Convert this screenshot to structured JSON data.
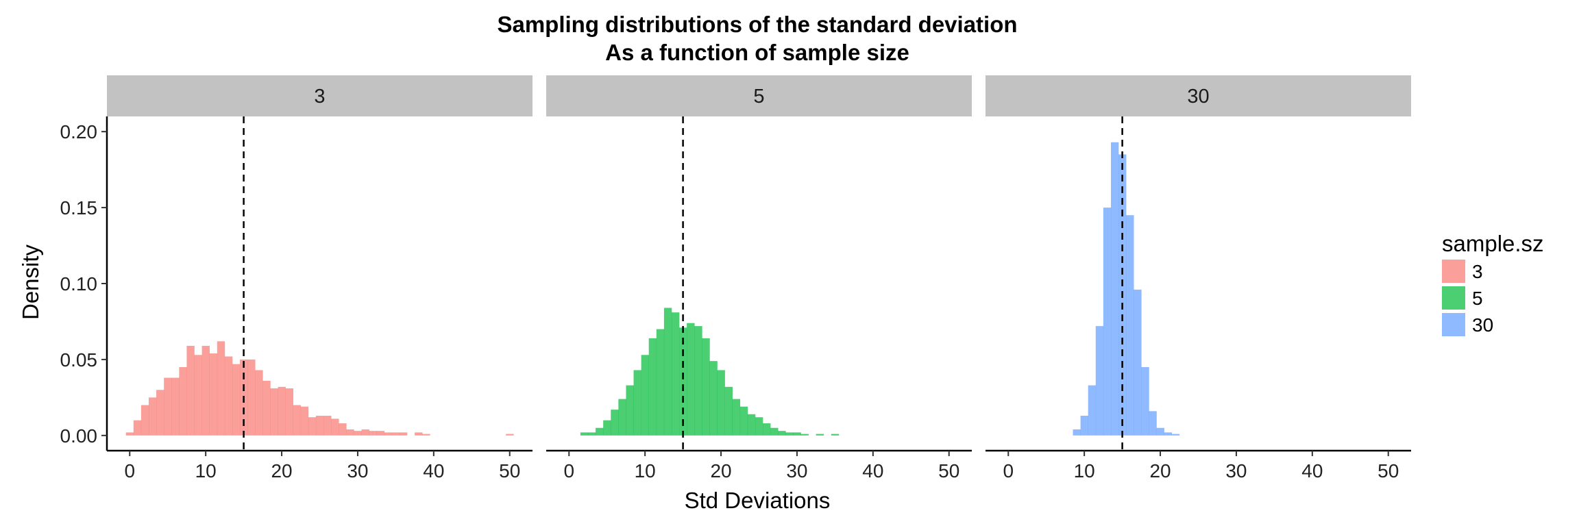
{
  "chart_data": {
    "type": "histogram",
    "title": "Sampling distributions of the standard deviation",
    "subtitle": "As a function of sample size",
    "xlabel": "Std Deviations",
    "ylabel": "Density",
    "xlim": [
      -3,
      53
    ],
    "ylim": [
      -0.01,
      0.21
    ],
    "xticks": [
      0,
      10,
      20,
      30,
      40,
      50
    ],
    "yticks": [
      0.0,
      0.05,
      0.1,
      0.15,
      0.2
    ],
    "ytick_labels": [
      "0.00",
      "0.05",
      "0.10",
      "0.15",
      "0.20"
    ],
    "bin_width": 1,
    "reference_line_x": 15,
    "grid": false,
    "legend": {
      "title": "sample.sz",
      "position": "right",
      "entries": [
        {
          "label": "3",
          "color": "#F8766D"
        },
        {
          "label": "5",
          "color": "#00BA38"
        },
        {
          "label": "30",
          "color": "#619CFF"
        }
      ]
    },
    "panels": [
      {
        "label": "3",
        "color": "#F8766D",
        "bins": [
          {
            "x": 0,
            "y": 0.002
          },
          {
            "x": 1,
            "y": 0.01
          },
          {
            "x": 2,
            "y": 0.02
          },
          {
            "x": 3,
            "y": 0.025
          },
          {
            "x": 4,
            "y": 0.03
          },
          {
            "x": 5,
            "y": 0.038
          },
          {
            "x": 6,
            "y": 0.038
          },
          {
            "x": 7,
            "y": 0.045
          },
          {
            "x": 8,
            "y": 0.059
          },
          {
            "x": 9,
            "y": 0.053
          },
          {
            "x": 10,
            "y": 0.059
          },
          {
            "x": 11,
            "y": 0.054
          },
          {
            "x": 12,
            "y": 0.062
          },
          {
            "x": 13,
            "y": 0.052
          },
          {
            "x": 14,
            "y": 0.047
          },
          {
            "x": 15,
            "y": 0.05
          },
          {
            "x": 16,
            "y": 0.05
          },
          {
            "x": 17,
            "y": 0.043
          },
          {
            "x": 18,
            "y": 0.036
          },
          {
            "x": 19,
            "y": 0.031
          },
          {
            "x": 20,
            "y": 0.032
          },
          {
            "x": 21,
            "y": 0.031
          },
          {
            "x": 22,
            "y": 0.02
          },
          {
            "x": 23,
            "y": 0.019
          },
          {
            "x": 24,
            "y": 0.012
          },
          {
            "x": 25,
            "y": 0.013
          },
          {
            "x": 26,
            "y": 0.013
          },
          {
            "x": 27,
            "y": 0.011
          },
          {
            "x": 28,
            "y": 0.008
          },
          {
            "x": 29,
            "y": 0.004
          },
          {
            "x": 30,
            "y": 0.003
          },
          {
            "x": 31,
            "y": 0.004
          },
          {
            "x": 32,
            "y": 0.003
          },
          {
            "x": 33,
            "y": 0.003
          },
          {
            "x": 34,
            "y": 0.002
          },
          {
            "x": 35,
            "y": 0.002
          },
          {
            "x": 36,
            "y": 0.002
          },
          {
            "x": 38,
            "y": 0.002
          },
          {
            "x": 39,
            "y": 0.001
          },
          {
            "x": 50,
            "y": 0.001
          }
        ]
      },
      {
        "label": "5",
        "color": "#00BA38",
        "bins": [
          {
            "x": 2,
            "y": 0.002
          },
          {
            "x": 3,
            "y": 0.002
          },
          {
            "x": 4,
            "y": 0.005
          },
          {
            "x": 5,
            "y": 0.01
          },
          {
            "x": 6,
            "y": 0.017
          },
          {
            "x": 7,
            "y": 0.024
          },
          {
            "x": 8,
            "y": 0.033
          },
          {
            "x": 9,
            "y": 0.043
          },
          {
            "x": 10,
            "y": 0.053
          },
          {
            "x": 11,
            "y": 0.064
          },
          {
            "x": 12,
            "y": 0.07
          },
          {
            "x": 13,
            "y": 0.084
          },
          {
            "x": 14,
            "y": 0.081
          },
          {
            "x": 15,
            "y": 0.071
          },
          {
            "x": 16,
            "y": 0.074
          },
          {
            "x": 17,
            "y": 0.072
          },
          {
            "x": 18,
            "y": 0.064
          },
          {
            "x": 19,
            "y": 0.049
          },
          {
            "x": 20,
            "y": 0.043
          },
          {
            "x": 21,
            "y": 0.032
          },
          {
            "x": 22,
            "y": 0.024
          },
          {
            "x": 23,
            "y": 0.019
          },
          {
            "x": 24,
            "y": 0.014
          },
          {
            "x": 25,
            "y": 0.012
          },
          {
            "x": 26,
            "y": 0.008
          },
          {
            "x": 27,
            "y": 0.005
          },
          {
            "x": 28,
            "y": 0.003
          },
          {
            "x": 29,
            "y": 0.002
          },
          {
            "x": 30,
            "y": 0.002
          },
          {
            "x": 31,
            "y": 0.001
          },
          {
            "x": 33,
            "y": 0.001
          },
          {
            "x": 35,
            "y": 0.001
          }
        ]
      },
      {
        "label": "30",
        "color": "#619CFF",
        "bins": [
          {
            "x": 9,
            "y": 0.004
          },
          {
            "x": 10,
            "y": 0.013
          },
          {
            "x": 11,
            "y": 0.033
          },
          {
            "x": 12,
            "y": 0.072
          },
          {
            "x": 13,
            "y": 0.15
          },
          {
            "x": 14,
            "y": 0.193
          },
          {
            "x": 15,
            "y": 0.185
          },
          {
            "x": 16,
            "y": 0.145
          },
          {
            "x": 17,
            "y": 0.096
          },
          {
            "x": 18,
            "y": 0.045
          },
          {
            "x": 19,
            "y": 0.016
          },
          {
            "x": 20,
            "y": 0.005
          },
          {
            "x": 21,
            "y": 0.002
          },
          {
            "x": 22,
            "y": 0.001
          }
        ]
      }
    ]
  }
}
